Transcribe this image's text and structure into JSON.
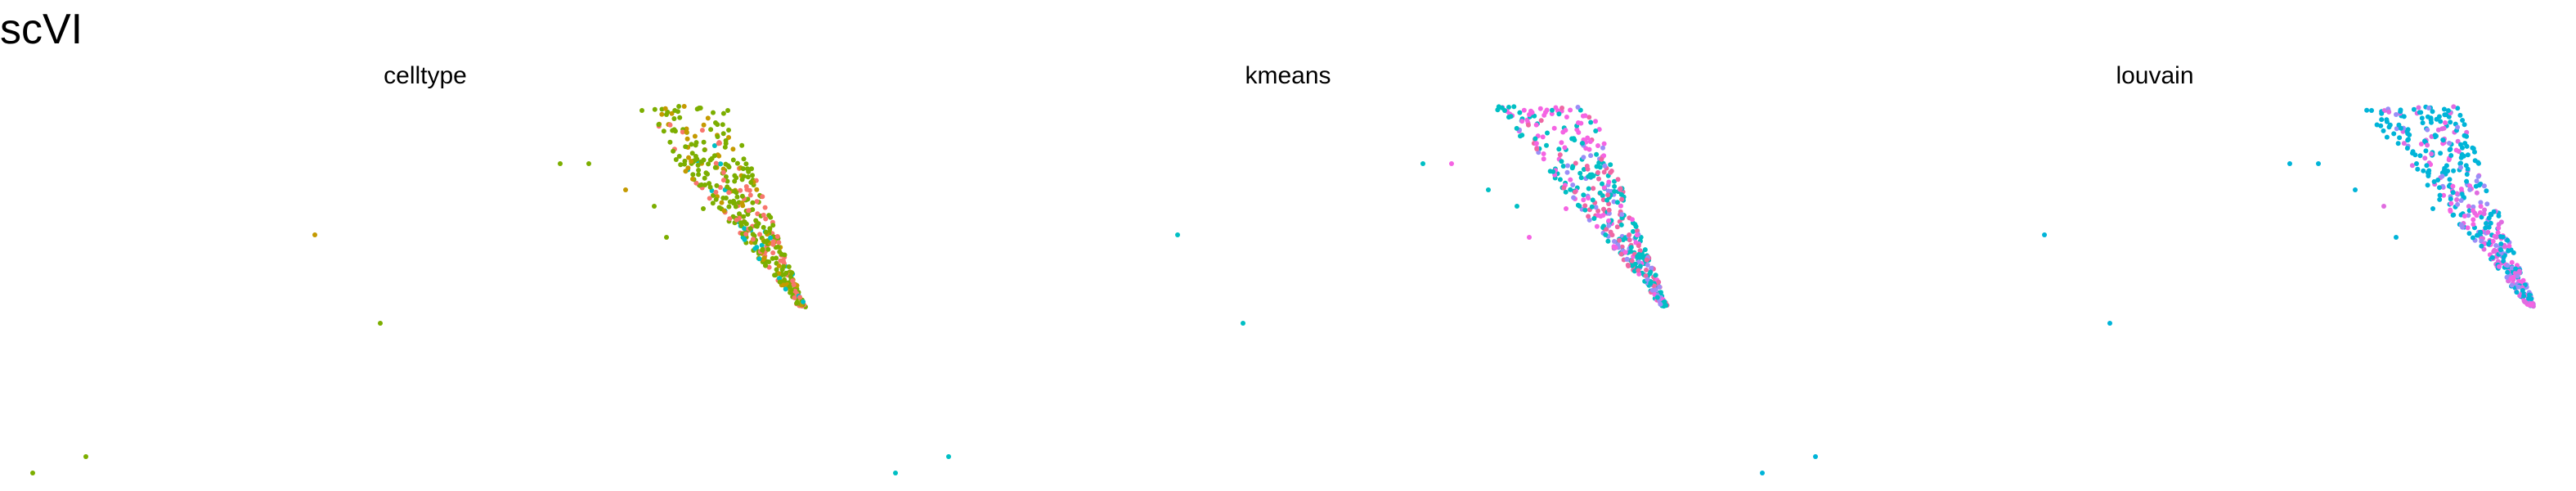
{
  "title": "scVI",
  "chart_data": [
    {
      "type": "scatter",
      "title": "celltype",
      "xlabel": "",
      "ylabel": "",
      "axes": "none",
      "grid": false,
      "legend": "none",
      "xlim": [
        0,
        1
      ],
      "ylim": [
        0,
        1
      ],
      "colors": {
        "a": "#f8766d",
        "b": "#b79f00",
        "c": "#00ba38",
        "d": "#00bfc4",
        "e": "#619cff",
        "f": "#f564e3",
        "g": "#c49a00",
        "h": "#7cae00"
      },
      "palette_keys": [
        "g",
        "h",
        "a",
        "d"
      ],
      "density": [
        0.15,
        0.6,
        0.2,
        0.05
      ]
    },
    {
      "type": "scatter",
      "title": "kmeans",
      "xlabel": "",
      "ylabel": "",
      "axes": "none",
      "grid": false,
      "legend": "none",
      "xlim": [
        0,
        1
      ],
      "ylim": [
        0,
        1
      ],
      "colors": {
        "a": "#f8766d",
        "b": "#00bfc4",
        "c": "#f564e3",
        "d": "#9b8ef7",
        "e": "#ef67a4"
      },
      "palette_keys": [
        "c",
        "b",
        "e",
        "d"
      ],
      "density": [
        0.25,
        0.4,
        0.2,
        0.15
      ]
    },
    {
      "type": "scatter",
      "title": "louvain",
      "xlabel": "",
      "ylabel": "",
      "axes": "none",
      "grid": false,
      "legend": "none",
      "xlim": [
        0,
        1
      ],
      "ylim": [
        0,
        1
      ],
      "colors": {
        "a": "#00b4d8",
        "b": "#e06ce0",
        "c": "#9b8ef7",
        "d": "#f564e3"
      },
      "palette_keys": [
        "a",
        "b",
        "c",
        "d"
      ],
      "density": [
        0.55,
        0.2,
        0.15,
        0.1
      ]
    }
  ]
}
